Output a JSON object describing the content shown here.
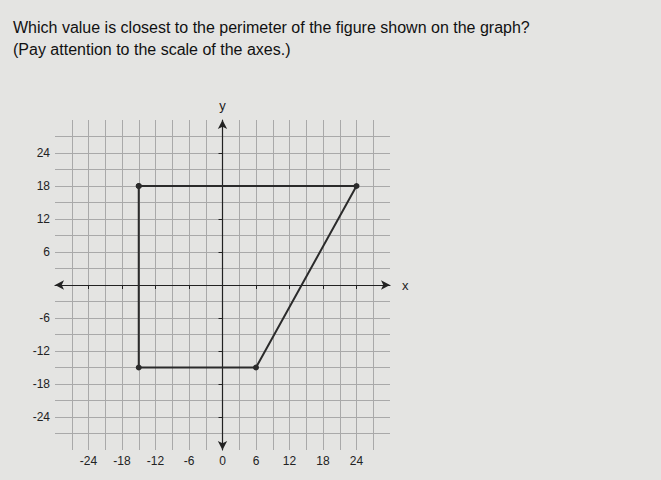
{
  "chart_data": {
    "type": "polygon",
    "title": "Which value is closest to the perimeter of the figure shown on the graph?",
    "subtitle": "(Pay attention to the scale of the axes.)",
    "x": [
      -15,
      24,
      6,
      -15
    ],
    "values": [
      18,
      18,
      -15,
      -15
    ],
    "color": "#2b2b2b",
    "marker": "circle",
    "xlabel": "x",
    "ylabel": "y",
    "xlim": [
      -30,
      30
    ],
    "ylim": [
      -30,
      30
    ],
    "xticks": [
      -24,
      -18,
      -12,
      -6,
      0,
      6,
      12,
      18,
      24
    ],
    "yticks": [
      -24,
      -18,
      -12,
      -6,
      6,
      12,
      18,
      24
    ],
    "grid": true
  }
}
